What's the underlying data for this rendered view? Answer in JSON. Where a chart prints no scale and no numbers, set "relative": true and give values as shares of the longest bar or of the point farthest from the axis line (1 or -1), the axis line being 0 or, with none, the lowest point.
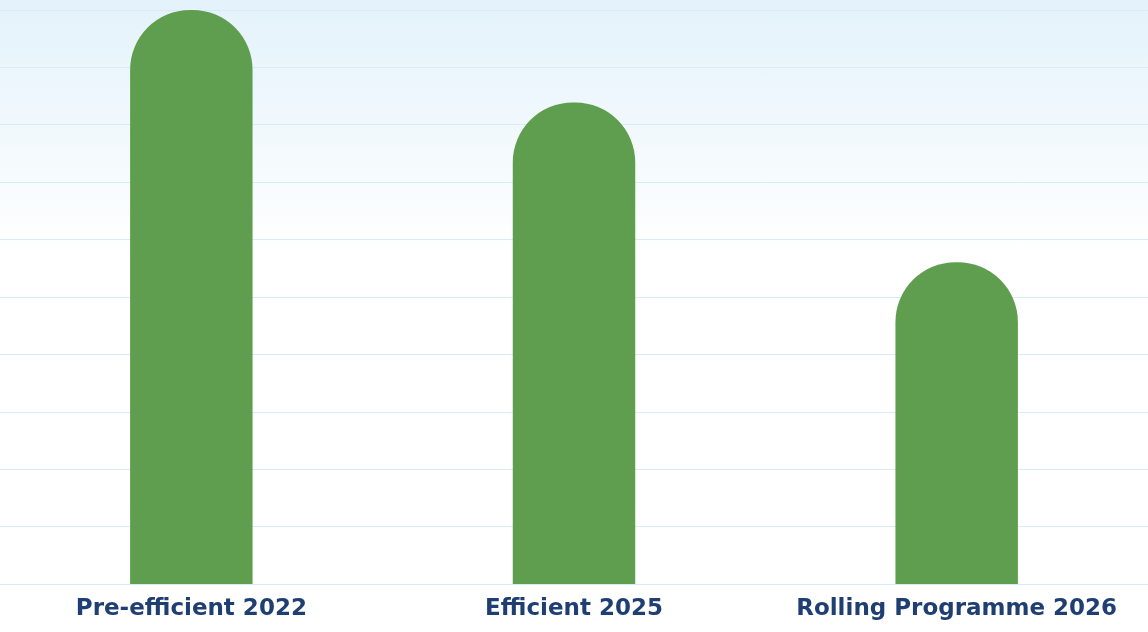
{
  "chart_data": {
    "type": "bar",
    "relative": true,
    "grid": "y",
    "categories": [
      "Pre-efficient 2022",
      "Efficient 2025",
      "Rolling Programme 2026"
    ],
    "values": [
      1,
      0.839,
      0.561
    ],
    "color": "#5f9e4e"
  }
}
